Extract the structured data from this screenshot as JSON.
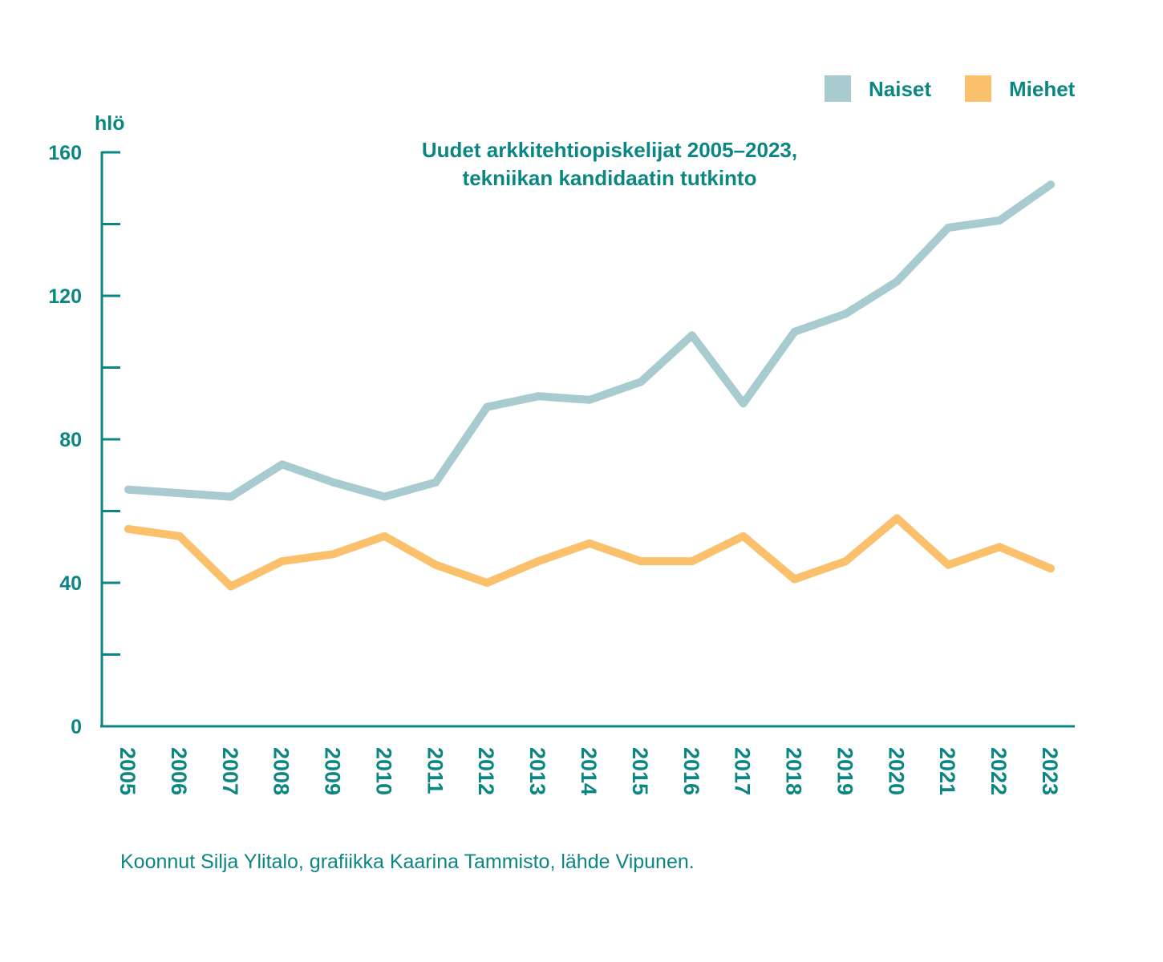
{
  "colors": {
    "accent": "#0b8683",
    "naiset": "#a8cbcf",
    "miehet": "#fac06b"
  },
  "legend": {
    "naiset_label": "Naiset",
    "miehet_label": "Miehet",
    "placement": "top-right"
  },
  "source_note": "Koonnut Silja Ylitalo, grafiikka Kaarina Tammisto, lähde Vipunen.",
  "chart_data": {
    "type": "line",
    "title_line1": "Uudet arkkitehtiopiskelijat 2005–2023,",
    "title_line2": "tekniikan kandidaatin tutkinto",
    "ylabel": "hlö",
    "xlabel": "",
    "ylim": [
      0,
      160
    ],
    "yticks": [
      0,
      40,
      80,
      120,
      160
    ],
    "grid": false,
    "x": [
      "2005",
      "2006",
      "2007",
      "2008",
      "2009",
      "2010",
      "2011",
      "2012",
      "2013",
      "2014",
      "2015",
      "2016",
      "2017",
      "2018",
      "2019",
      "2020",
      "2021",
      "2022",
      "2023"
    ],
    "series": [
      {
        "name": "Naiset",
        "color": "#a8cbcf",
        "values": [
          66,
          65,
          64,
          73,
          68,
          64,
          68,
          89,
          92,
          91,
          96,
          109,
          90,
          110,
          115,
          124,
          139,
          141,
          151
        ]
      },
      {
        "name": "Miehet",
        "color": "#fac06b",
        "values": [
          55,
          53,
          39,
          46,
          48,
          53,
          45,
          40,
          46,
          51,
          46,
          46,
          53,
          41,
          46,
          58,
          45,
          50,
          44
        ]
      }
    ]
  }
}
